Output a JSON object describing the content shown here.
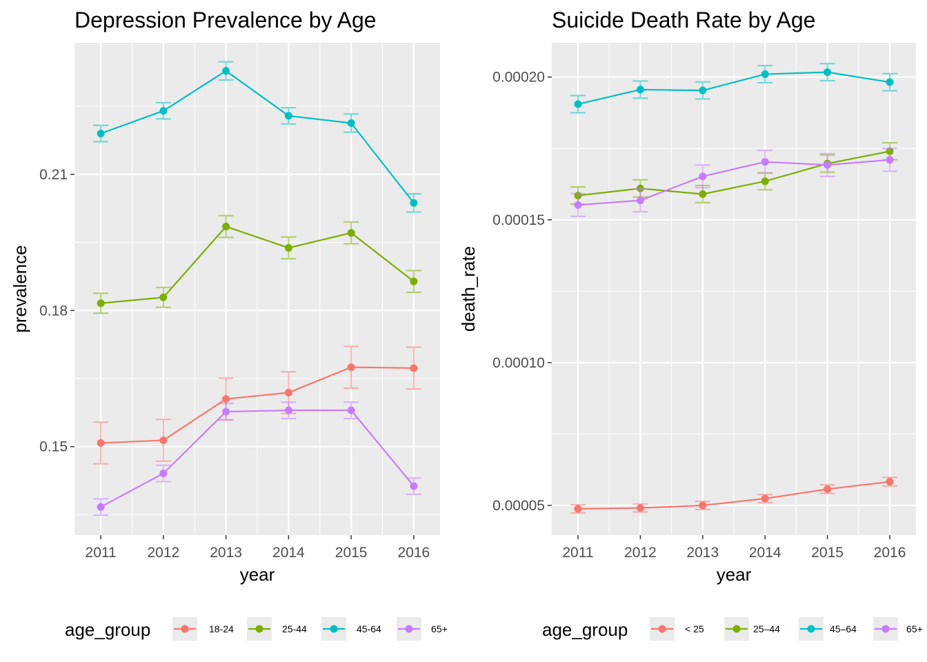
{
  "chart_data": [
    {
      "type": "line",
      "title": "Depression Prevalence by Age",
      "xlabel": "year",
      "ylabel": "prevalence",
      "x": [
        2011,
        2012,
        2013,
        2014,
        2015,
        2016
      ],
      "x_tick_labels": [
        "2011",
        "2012",
        "2013",
        "2014",
        "2015",
        "2016"
      ],
      "ylim": [
        0.1305,
        0.239
      ],
      "y_ticks": [
        0.15,
        0.18,
        0.21
      ],
      "y_tick_labels": [
        "0.15",
        "0.18",
        "0.21"
      ],
      "grid": true,
      "error_bars": true,
      "legend": {
        "title": "age_group",
        "position": "bottom"
      },
      "series": [
        {
          "name": "18-24",
          "color": "#F8766D",
          "values": [
            0.1508,
            0.1514,
            0.1605,
            0.1619,
            0.1675,
            0.1673
          ],
          "lower": [
            0.1462,
            0.1468,
            0.1559,
            0.1573,
            0.1629,
            0.1627
          ],
          "upper": [
            0.1554,
            0.156,
            0.1651,
            0.1665,
            0.1721,
            0.1719
          ]
        },
        {
          "name": "25-44",
          "color": "#7CAE00",
          "values": [
            0.1816,
            0.1829,
            0.1985,
            0.1938,
            0.1971,
            0.1864
          ],
          "lower": [
            0.1794,
            0.1807,
            0.1961,
            0.1914,
            0.1947,
            0.184
          ],
          "upper": [
            0.1838,
            0.1851,
            0.2009,
            0.1962,
            0.1995,
            0.1888
          ]
        },
        {
          "name": "45-64",
          "color": "#00BFC4",
          "values": [
            0.219,
            0.224,
            0.2328,
            0.2229,
            0.2213,
            0.2037
          ],
          "lower": [
            0.2172,
            0.2222,
            0.2308,
            0.2211,
            0.2193,
            0.2017
          ],
          "upper": [
            0.2208,
            0.2258,
            0.2348,
            0.2247,
            0.2233,
            0.2057
          ]
        },
        {
          "name": "65+",
          "color": "#C77CFF",
          "values": [
            0.1367,
            0.1441,
            0.1577,
            0.158,
            0.158,
            0.1413
          ],
          "lower": [
            0.1349,
            0.1423,
            0.1559,
            0.1562,
            0.1562,
            0.1395
          ],
          "upper": [
            0.1385,
            0.1459,
            0.1595,
            0.1598,
            0.1598,
            0.1431
          ]
        }
      ]
    },
    {
      "type": "line",
      "title": "Suicide Death Rate by Age",
      "xlabel": "year",
      "ylabel": "death_rate",
      "x": [
        2011,
        2012,
        2013,
        2014,
        2015,
        2016
      ],
      "x_tick_labels": [
        "2011",
        "2012",
        "2013",
        "2014",
        "2015",
        "2016"
      ],
      "ylim": [
        3.96e-05,
        0.000212
      ],
      "y_ticks": [
        5e-05,
        0.0001,
        0.00015,
        0.0002
      ],
      "y_tick_labels": [
        "0.00005",
        "0.00010",
        "0.00015",
        "0.00020"
      ],
      "grid": true,
      "error_bars": true,
      "legend": {
        "title": "age_group",
        "position": "bottom"
      },
      "series": [
        {
          "name": "< 25",
          "color": "#F8766D",
          "values": [
            4.88e-05,
            4.91e-05,
            5e-05,
            5.24e-05,
            5.57e-05,
            5.83e-05
          ],
          "lower": [
            4.74e-05,
            4.77e-05,
            4.86e-05,
            5.1e-05,
            5.42e-05,
            5.68e-05
          ],
          "upper": [
            5.02e-05,
            5.05e-05,
            5.14e-05,
            5.38e-05,
            5.72e-05,
            5.98e-05
          ]
        },
        {
          "name": "25–44",
          "color": "#7CAE00",
          "values": [
            0.0001585,
            0.000161,
            0.000159,
            0.0001635,
            0.0001697,
            0.000174
          ],
          "lower": [
            0.0001555,
            0.000158,
            0.000156,
            0.0001605,
            0.0001667,
            0.000171
          ],
          "upper": [
            0.0001615,
            0.000164,
            0.000162,
            0.0001665,
            0.0001727,
            0.000177
          ]
        },
        {
          "name": "45–64",
          "color": "#00BFC4",
          "values": [
            0.0001905,
            0.0001956,
            0.0001953,
            0.000201,
            0.0002017,
            0.0001982
          ],
          "lower": [
            0.0001875,
            0.0001926,
            0.0001923,
            0.000198,
            0.0001987,
            0.0001952
          ],
          "upper": [
            0.0001935,
            0.0001986,
            0.0001983,
            0.000204,
            0.0002047,
            0.0002012
          ]
        },
        {
          "name": "65+",
          "color": "#C77CFF",
          "values": [
            0.0001552,
            0.0001568,
            0.0001652,
            0.0001703,
            0.0001692,
            0.000171
          ],
          "lower": [
            0.0001512,
            0.0001528,
            0.0001612,
            0.0001663,
            0.0001652,
            0.000167
          ],
          "upper": [
            0.0001592,
            0.0001608,
            0.0001692,
            0.0001743,
            0.0001732,
            0.000175
          ]
        }
      ]
    }
  ]
}
